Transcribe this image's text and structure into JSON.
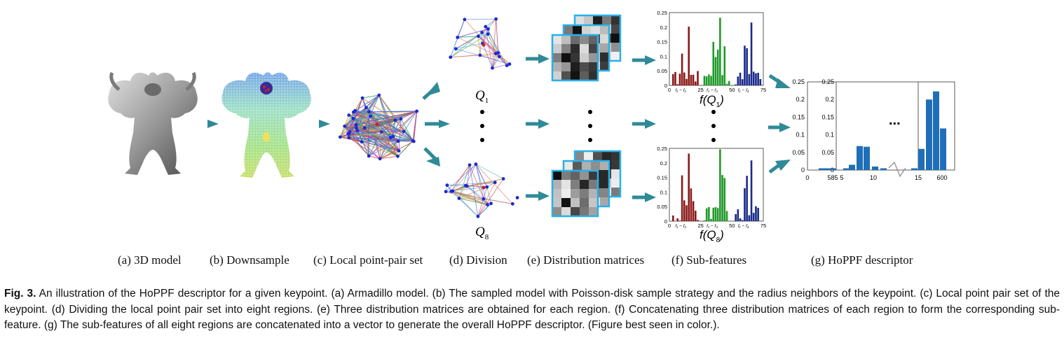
{
  "figure": {
    "q_labels": {
      "top": "Q",
      "top_sub": "1",
      "bottom": "Q",
      "bottom_sub": "8"
    },
    "f_labels": {
      "top": "f(Q",
      "top_sub": "1",
      "top_close": ")",
      "bottom": "f(Q",
      "bottom_sub": "8",
      "bottom_close": ")"
    },
    "ellipsis": "...",
    "small_hist": {
      "yticks": [
        "0.25",
        "0.2",
        "0.15",
        "0.1",
        "0.05",
        "0"
      ],
      "xticks": [
        "0",
        "25",
        "50",
        "75"
      ],
      "seg_labels": [
        "f₁ − f₂",
        "f₁ − f₃",
        "f₁ − f₄"
      ],
      "colors": [
        "#8b1a1a",
        "#1f9a2a",
        "#1a2a8b"
      ]
    },
    "big_hist": {
      "yticks_left": [
        "0.25",
        "0.2",
        "0.15",
        "0.1",
        "0.05",
        "0"
      ],
      "yticks_mid": [
        "0.25",
        "0.2",
        "0.15",
        "0.1",
        "0.05",
        "0"
      ],
      "xticks_left": [
        "0",
        "585"
      ],
      "xticks_mid": [
        "5",
        "10",
        "15"
      ],
      "xticks_right": [
        "600"
      ],
      "bar_color": "#1f6fb8"
    },
    "sub_labels": {
      "a": "(a) 3D model",
      "b": "(b) Downsample",
      "c": "(c) Local point-pair set",
      "d": "(d) Division",
      "e": "(e) Distribution matrices",
      "f": "(f) Sub-features",
      "g": "(g) HoPPF descriptor"
    },
    "arrow_color": "#2f8a96"
  },
  "caption": {
    "label": "Fig. 3.",
    "text": "An illustration of the HoPPF descriptor for a given keypoint. (a) Armadillo model. (b) The sampled model with Poisson-disk sample strategy and the radius neighbors of the keypoint. (c) Local point pair set of the keypoint. (d) Dividing the local point pair set into eight regions. (e) Three distribution matrices are obtained for each region. (f) Concatenating three distribution matrices of each region to form the corresponding sub-feature. (g) The sub-features of all eight regions are concatenated into a vector to generate the overall HoPPF descriptor. (Figure best seen in color.)."
  }
}
